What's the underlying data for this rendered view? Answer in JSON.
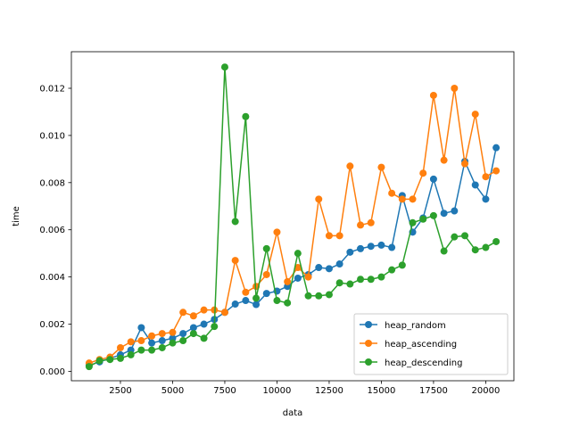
{
  "chart_data": {
    "type": "line",
    "xlabel": "data",
    "ylabel": "time",
    "xlim": [
      150,
      21350
    ],
    "ylim": [
      -0.0004,
      0.01355
    ],
    "xticks": [
      2500,
      5000,
      7500,
      10000,
      12500,
      15000,
      17500,
      20000
    ],
    "xtick_labels": [
      "2500",
      "5000",
      "7500",
      "10000",
      "12500",
      "15000",
      "17500",
      "20000"
    ],
    "yticks": [
      0,
      0.002,
      0.004,
      0.006,
      0.008,
      0.01,
      0.012
    ],
    "ytick_labels": [
      "0.000",
      "0.002",
      "0.004",
      "0.006",
      "0.008",
      "0.010",
      "0.012"
    ],
    "legend_position": "lower-right",
    "grid": false,
    "x": [
      1000,
      1500,
      2000,
      2500,
      3000,
      3500,
      4000,
      4500,
      5000,
      5500,
      6000,
      6500,
      7000,
      7500,
      8000,
      8500,
      9000,
      9500,
      10000,
      10500,
      11000,
      11500,
      12000,
      12500,
      13000,
      13500,
      14000,
      14500,
      15000,
      15500,
      16000,
      16500,
      17000,
      17500,
      18000,
      18500,
      19000,
      19500,
      20000,
      20500
    ],
    "series": [
      {
        "name": "heap_random",
        "color": "#1f77b4",
        "values": [
          0.00025,
          0.0004,
          0.00055,
          0.0007,
          0.0009,
          0.00185,
          0.0012,
          0.0013,
          0.0014,
          0.0016,
          0.00185,
          0.002,
          0.0022,
          0.0025,
          0.00285,
          0.003,
          0.00283,
          0.0033,
          0.0034,
          0.0036,
          0.00395,
          0.0041,
          0.0044,
          0.00435,
          0.00455,
          0.00505,
          0.0052,
          0.0053,
          0.00535,
          0.00525,
          0.00745,
          0.0059,
          0.0065,
          0.00815,
          0.0067,
          0.0068,
          0.0089,
          0.0079,
          0.0073,
          0.00948
        ]
      },
      {
        "name": "heap_ascending",
        "color": "#ff7f0e",
        "values": [
          0.00035,
          0.0005,
          0.0006,
          0.001,
          0.00125,
          0.0013,
          0.0015,
          0.0016,
          0.00165,
          0.0025,
          0.00235,
          0.0026,
          0.0026,
          0.0025,
          0.0047,
          0.00335,
          0.0036,
          0.0041,
          0.0059,
          0.0038,
          0.0044,
          0.004,
          0.0073,
          0.00575,
          0.00575,
          0.0087,
          0.0062,
          0.0063,
          0.00865,
          0.00755,
          0.0073,
          0.0073,
          0.0084,
          0.0117,
          0.00895,
          0.012,
          0.0088,
          0.0109,
          0.00825,
          0.0085
        ]
      },
      {
        "name": "heap_descending",
        "color": "#2ca02c",
        "values": [
          0.0002,
          0.00045,
          0.0005,
          0.00055,
          0.0007,
          0.0009,
          0.0009,
          0.001,
          0.0012,
          0.0013,
          0.0016,
          0.0014,
          0.0019,
          0.0129,
          0.00635,
          0.0108,
          0.0031,
          0.0052,
          0.003,
          0.0029,
          0.005,
          0.0032,
          0.0032,
          0.00325,
          0.00375,
          0.0037,
          0.0039,
          0.0039,
          0.004,
          0.0043,
          0.0045,
          0.0063,
          0.00645,
          0.0066,
          0.0051,
          0.0057,
          0.00575,
          0.00515,
          0.00525,
          0.0055
        ]
      }
    ]
  }
}
